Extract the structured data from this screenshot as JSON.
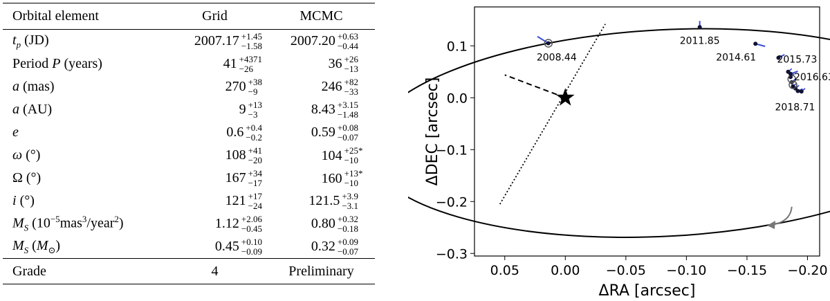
{
  "table": {
    "headers": [
      "Orbital element",
      "Grid",
      "MCMC"
    ],
    "rows": [
      {
        "name": "row-tp",
        "label_html": "<i>t</i><sub><i>p</i></sub> (JD)",
        "grid": {
          "v": "2007.17",
          "p": "+1.45",
          "m": "−1.58"
        },
        "mcmc": {
          "v": "2007.20",
          "p": "+0.63",
          "m": "−0.44"
        },
        "flag": ""
      },
      {
        "name": "row-period",
        "label_html": "Period <i>P</i> (years)",
        "grid": {
          "v": "41",
          "p": "+4371",
          "m": "−26"
        },
        "mcmc": {
          "v": "36",
          "p": "+26",
          "m": "−13"
        },
        "flag": ""
      },
      {
        "name": "row-a-mas",
        "label_html": "<i>a</i> (mas)",
        "grid": {
          "v": "270",
          "p": "+38",
          "m": "−9"
        },
        "mcmc": {
          "v": "246",
          "p": "+82",
          "m": "−33"
        },
        "flag": ""
      },
      {
        "name": "row-a-au",
        "label_html": "<i>a</i> (AU)",
        "grid": {
          "v": "9",
          "p": "+13",
          "m": "−3"
        },
        "mcmc": {
          "v": "8.43",
          "p": "+3.15",
          "m": "−1.48"
        },
        "flag": ""
      },
      {
        "name": "row-e",
        "label_html": "<i>e</i>",
        "grid": {
          "v": "0.6",
          "p": "+0.4",
          "m": "−0.2"
        },
        "mcmc": {
          "v": "0.59",
          "p": "+0.08",
          "m": "−0.07"
        },
        "flag": ""
      },
      {
        "name": "row-omega",
        "label_html": "<i>ω</i> (°)",
        "grid": {
          "v": "108",
          "p": "+41",
          "m": "−20"
        },
        "mcmc": {
          "v": "104",
          "p": "+25",
          "m": "−10"
        },
        "flag": "*"
      },
      {
        "name": "row-Omega",
        "label_html": "Ω (°)",
        "grid": {
          "v": "167",
          "p": "+34",
          "m": "−17"
        },
        "mcmc": {
          "v": "160",
          "p": "+13",
          "m": "−10"
        },
        "flag": "*"
      },
      {
        "name": "row-i",
        "label_html": "<i>i</i> (°)",
        "grid": {
          "v": "121",
          "p": "+17",
          "m": "−24"
        },
        "mcmc": {
          "v": "121.5",
          "p": "+3.9",
          "m": "−3.1"
        },
        "flag": ""
      },
      {
        "name": "row-Ms-mas",
        "label_html": "<i>M</i><sub><i>S</i></sub> (10<sup>−5</sup>mas<sup>3</sup>/year<sup>2</sup>)",
        "grid": {
          "v": "1.12",
          "p": "+2.06",
          "m": "−0.45"
        },
        "mcmc": {
          "v": "0.80",
          "p": "+0.32",
          "m": "−0.18"
        },
        "flag": ""
      },
      {
        "name": "row-Ms-sun",
        "label_html": "<i>M</i><sub><i>S</i></sub> (<i>M</i><sub>⊙</sub>)",
        "grid": {
          "v": "0.45",
          "p": "+0.10",
          "m": "−0.09"
        },
        "mcmc": {
          "v": "0.32",
          "p": "+0.09",
          "m": "−0.07"
        },
        "flag": ""
      }
    ],
    "grade": {
      "label": "Grade",
      "grid": "4",
      "mcmc": "Preliminary"
    }
  },
  "chart_data": {
    "type": "scatter",
    "xlabel": "ΔRA [arcsec]",
    "ylabel": "ΔDEC [arcsec]",
    "xlim": [
      0.075,
      -0.21
    ],
    "ylim": [
      -0.305,
      0.175
    ],
    "xticks": [
      0.05,
      0.0,
      -0.05,
      -0.1,
      -0.15,
      -0.2
    ],
    "xtick_labels": [
      "0.05",
      "0.00",
      "−0.05",
      "−0.10",
      "−0.15",
      "−0.20"
    ],
    "yticks": [
      -0.3,
      -0.2,
      -0.1,
      0.0,
      0.1
    ],
    "ytick_labels": [
      "−0.3",
      "−0.2",
      "−0.1",
      "0.0",
      "0.1"
    ],
    "star": {
      "x": 0.0,
      "y": 0.0
    },
    "orbit": {
      "a": 0.246,
      "b": 0.199,
      "cx": -0.082,
      "cy": -0.068,
      "rot_deg": -3
    },
    "line_of_nodes": [
      [
        0.054,
        -0.205
      ],
      [
        -0.033,
        0.142
      ]
    ],
    "periastron_line": [
      [
        0.0,
        0.0
      ],
      [
        0.05,
        0.044
      ]
    ],
    "observations": [
      {
        "label": "2008.44",
        "x": 0.014,
        "y": 0.105,
        "fx": 0.023,
        "fy": 0.118
      },
      {
        "label": "2011.85",
        "x": -0.111,
        "y": 0.136,
        "fx": -0.111,
        "fy": 0.148
      },
      {
        "label": "2014.61",
        "x": -0.157,
        "y": 0.104,
        "fx": -0.165,
        "fy": 0.099
      },
      {
        "label": "2015.73",
        "x": -0.176,
        "y": 0.077,
        "fx": -0.181,
        "fy": 0.083
      },
      {
        "label": "2016.63",
        "x": -0.186,
        "y": 0.046,
        "fx": -0.192,
        "fy": 0.051
      },
      {
        "label": "2018.71",
        "x": -0.192,
        "y": 0.013,
        "fx": -0.196,
        "fy": 0.017
      }
    ],
    "cluster_points": [
      {
        "x": -0.184,
        "y": 0.05
      },
      {
        "x": -0.186,
        "y": 0.04
      },
      {
        "x": -0.187,
        "y": 0.03
      },
      {
        "x": -0.188,
        "y": 0.022
      },
      {
        "x": -0.19,
        "y": 0.018
      },
      {
        "x": -0.195,
        "y": 0.012
      }
    ],
    "circled_points": [
      {
        "x": 0.014,
        "y": 0.105
      },
      {
        "x": -0.187,
        "y": 0.036
      },
      {
        "x": -0.188,
        "y": 0.025
      }
    ],
    "direction_arrow": {
      "from": [
        -0.187,
        -0.21
      ],
      "to": [
        -0.17,
        -0.245
      ]
    }
  }
}
